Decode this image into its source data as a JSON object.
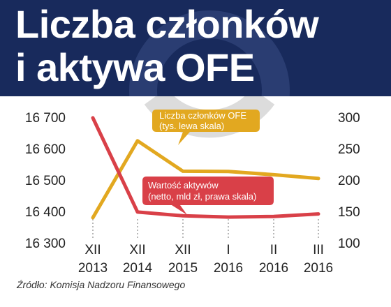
{
  "header": {
    "title_line1": "Liczba członków",
    "title_line2": "i aktywa OFE"
  },
  "source": "Źródło: Komisja Nadzoru Finansowego",
  "colors": {
    "header_bg": "#182a5c",
    "members_line": "#e2a820",
    "assets_line": "#d94048",
    "watermark": "#dcdcdc"
  },
  "chart_data": {
    "type": "line",
    "categories": [
      "XII 2013",
      "XII 2014",
      "XII 2015",
      "I 2016",
      "II 2016",
      "III 2016"
    ],
    "category_labels": [
      {
        "top": "XII",
        "bottom": "2013"
      },
      {
        "top": "XII",
        "bottom": "2014"
      },
      {
        "top": "XII",
        "bottom": "2015"
      },
      {
        "top": "I",
        "bottom": "2016"
      },
      {
        "top": "II",
        "bottom": "2016"
      },
      {
        "top": "III",
        "bottom": "2016"
      }
    ],
    "left_axis": {
      "ylim": [
        16300,
        16700
      ],
      "ticks": [
        "16 700",
        "16 600",
        "16 500",
        "16 400",
        "16 300"
      ],
      "tick_values": [
        16700,
        16600,
        16500,
        16400,
        16300
      ]
    },
    "right_axis": {
      "ylim": [
        100,
        300
      ],
      "ticks": [
        "300",
        "250",
        "200",
        "150",
        "100"
      ],
      "tick_values": [
        300,
        250,
        200,
        150,
        100
      ]
    },
    "grid": false,
    "series": [
      {
        "key": "members",
        "axis": "left",
        "color": "#e2a820",
        "label_line1": "Liczba członków OFE",
        "label_line2": "(tys. lewa skala)",
        "values": [
          16380,
          16625,
          16528,
          16527,
          16517,
          16505
        ]
      },
      {
        "key": "assets",
        "axis": "right",
        "color": "#d94048",
        "label_line1": "Wartość aktywów",
        "label_line2": "(netto, mld zł, prawa skala)",
        "values": [
          299,
          149,
          143,
          141,
          142,
          146
        ]
      }
    ]
  }
}
